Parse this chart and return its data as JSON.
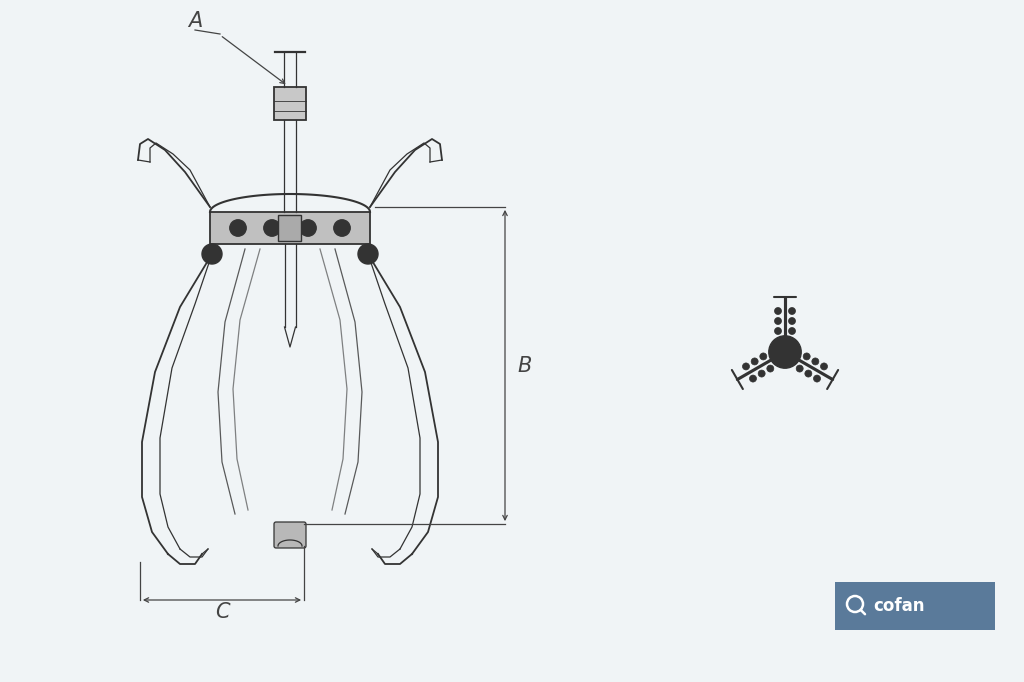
{
  "background_color": "#f0f4f6",
  "line_color": "#555555",
  "line_color_dark": "#333333",
  "cofan_bg": "#5a7a9a",
  "cofan_text": "#ffffff",
  "label_A": "A",
  "label_B": "B",
  "label_C": "C",
  "cofan_label": "cofan",
  "fig_width": 10.24,
  "fig_height": 6.82
}
